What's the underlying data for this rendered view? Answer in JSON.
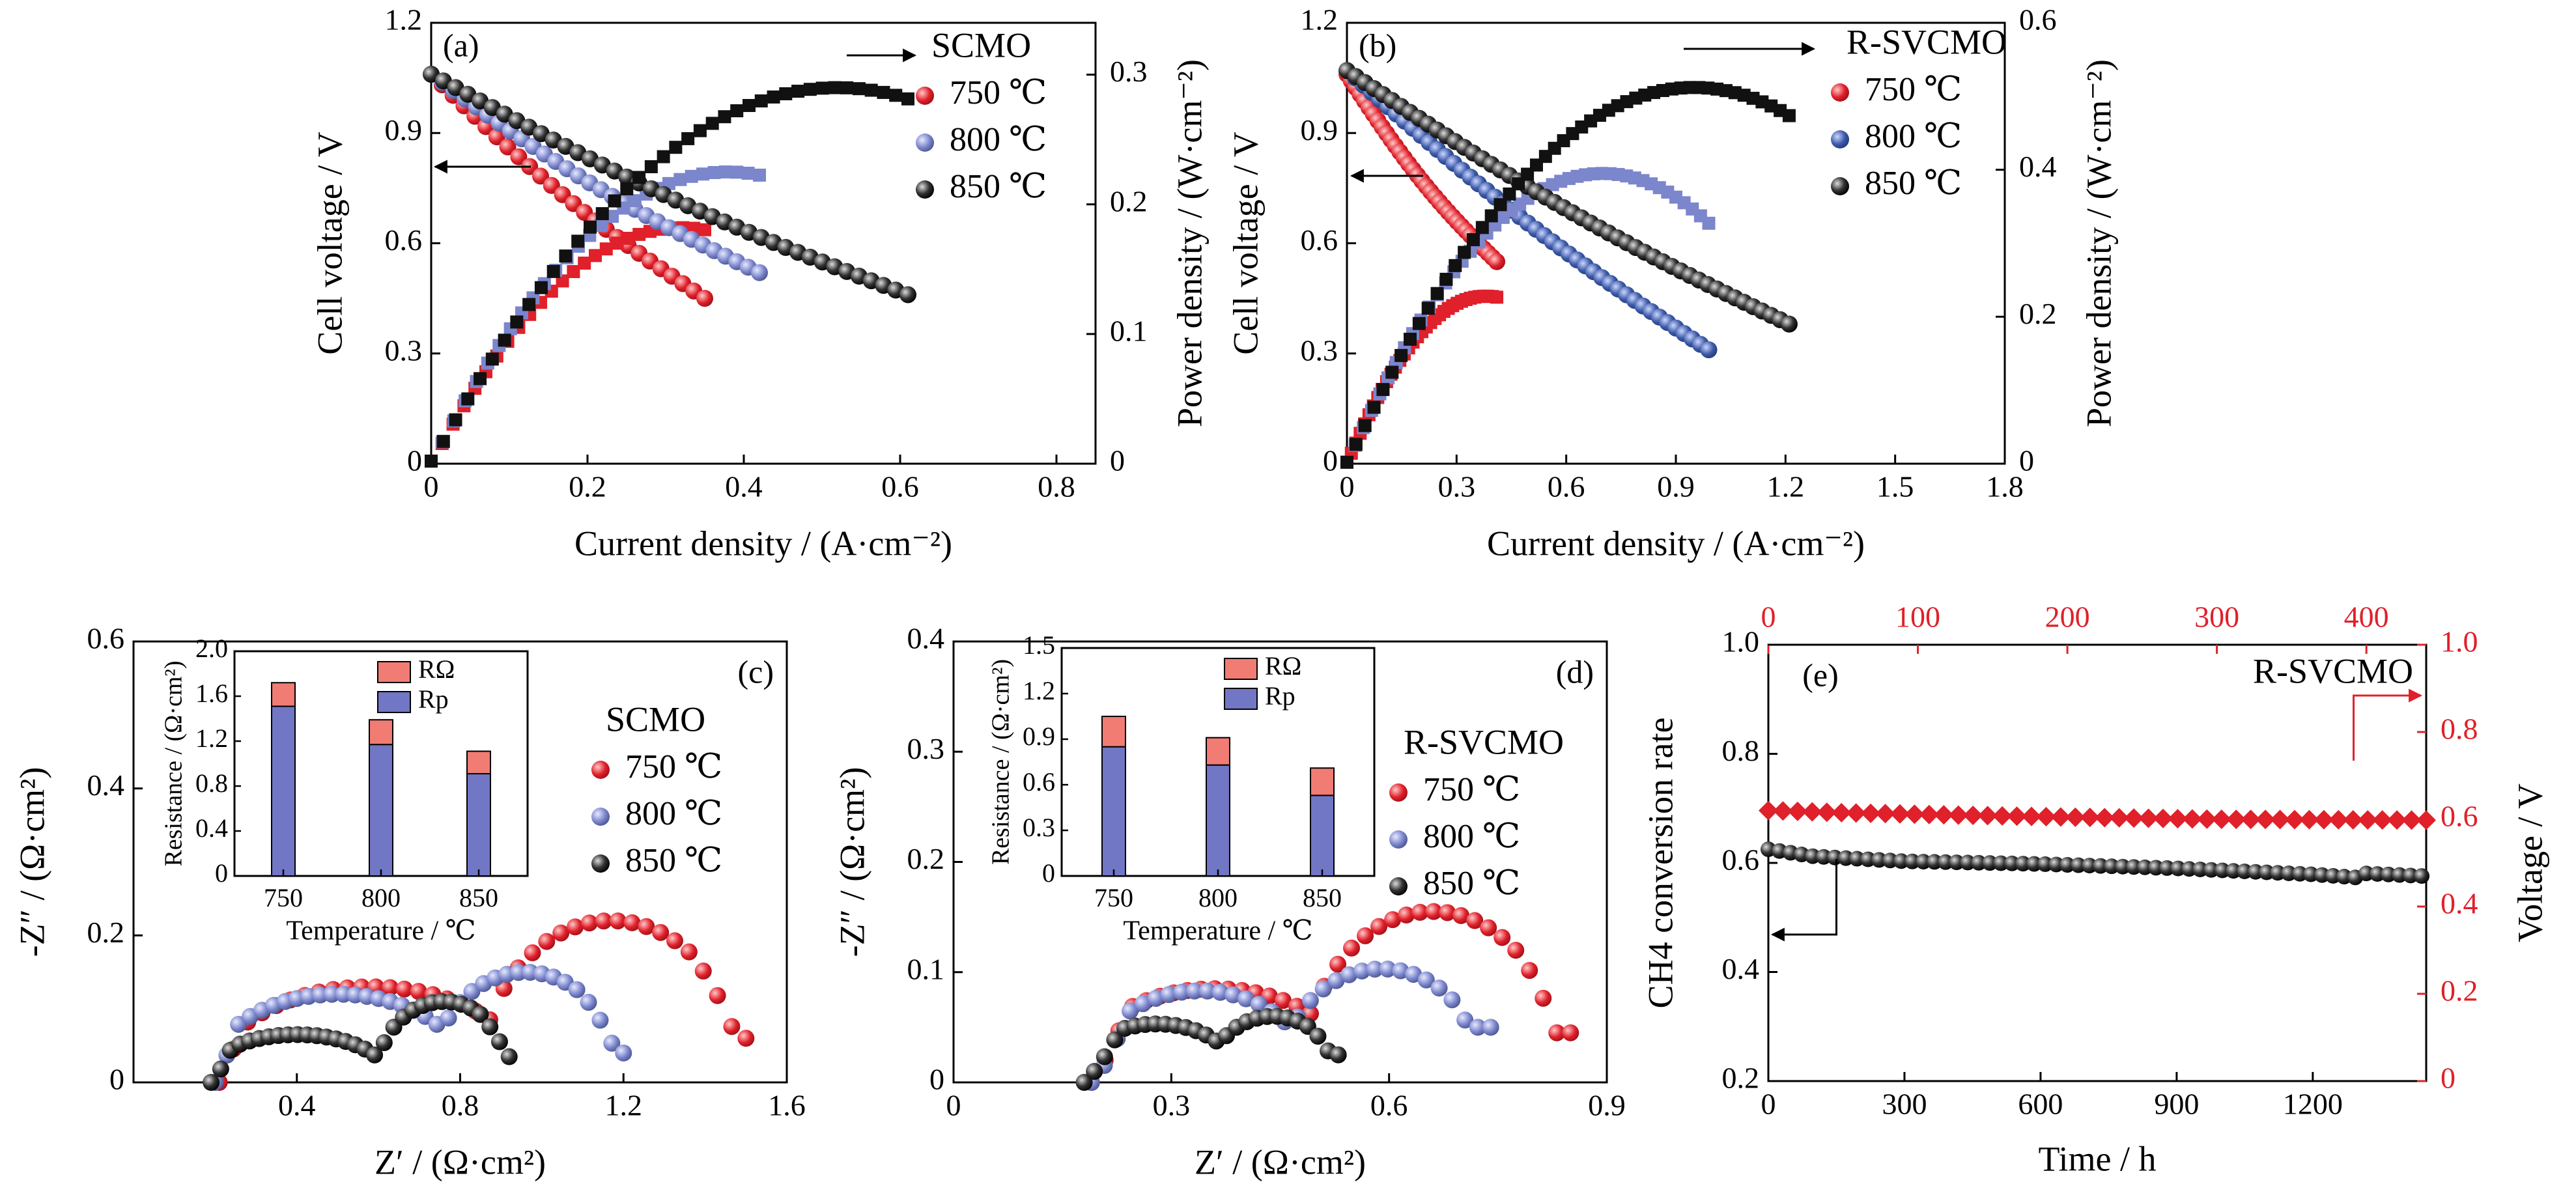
{
  "chart_data": [
    {
      "panel": "(a)",
      "type": "line",
      "legend_title": "SCMO",
      "xlabel": "Current density / (A·cm⁻²)",
      "ylabel": "Cell voltage / V",
      "y2label": "Power density / (W·cm⁻²)",
      "xlim": [
        0,
        0.85
      ],
      "ylim": [
        0,
        1.2
      ],
      "y2lim": [
        0,
        0.34
      ],
      "xticks": [
        "0",
        "0.2",
        "0.4",
        "0.6",
        "0.8"
      ],
      "yticks": [
        "0",
        "0.3",
        "0.6",
        "0.9",
        "1.2"
      ],
      "y2ticks": [
        "0",
        "0.1",
        "0.2",
        "0.3"
      ],
      "series": [
        {
          "name": "750 ℃",
          "color": "#e0202a",
          "voltage": {
            "x0": 0,
            "x1": 0.35,
            "y0": 1.06,
            "y1": 0.45,
            "n": 26
          },
          "power": {
            "xmax": 0.35,
            "peak_x": 0.32,
            "peak": 0.182,
            "n": 26
          }
        },
        {
          "name": "800 ℃",
          "color": "#7b86cc",
          "voltage": {
            "x0": 0,
            "x1": 0.42,
            "y0": 1.06,
            "y1": 0.52,
            "n": 30
          },
          "power": {
            "xmax": 0.42,
            "peak_x": 0.38,
            "peak": 0.225,
            "n": 30
          }
        },
        {
          "name": "850 ℃",
          "color": "#111111",
          "voltage": {
            "x0": 0,
            "x1": 0.61,
            "y0": 1.06,
            "y1": 0.46,
            "n": 40
          },
          "power": {
            "xmax": 0.61,
            "peak_x": 0.52,
            "peak": 0.29,
            "n": 40
          }
        }
      ]
    },
    {
      "panel": "(b)",
      "type": "line",
      "legend_title": "R-SVCMO",
      "xlabel": "Current density / (A·cm⁻²)",
      "ylabel": "Cell voltage / V",
      "y2label": "Power density / (W·cm⁻²)",
      "xlim": [
        0,
        1.8
      ],
      "ylim": [
        0,
        1.2
      ],
      "y2lim": [
        0,
        0.6
      ],
      "xticks": [
        "0",
        "0.3",
        "0.6",
        "0.9",
        "1.2",
        "1.5",
        "1.8"
      ],
      "yticks": [
        "0",
        "0.3",
        "0.6",
        "0.9",
        "1.2"
      ],
      "y2ticks": [
        "0",
        "0.2",
        "0.4",
        "0.6"
      ],
      "series": [
        {
          "name": "750 ℃",
          "color": "#e0202a",
          "voltage": {
            "x0": 0,
            "x1": 0.41,
            "y0": 1.06,
            "y1": 0.55,
            "n": 35
          },
          "power": {
            "xmax": 0.41,
            "peak_x": 0.38,
            "peak": 0.228,
            "n": 35
          }
        },
        {
          "name": "800 ℃",
          "color": "#3d5aa8",
          "voltage": {
            "x0": 0,
            "x1": 0.99,
            "y0": 1.07,
            "y1": 0.31,
            "n": 45
          },
          "power": {
            "xmax": 0.99,
            "peak_x": 0.7,
            "peak": 0.395,
            "n": 45
          }
        },
        {
          "name": "850 ℃",
          "color": "#111111",
          "voltage": {
            "x0": 0,
            "x1": 1.21,
            "y0": 1.07,
            "y1": 0.38,
            "n": 50
          },
          "power": {
            "xmax": 1.21,
            "peak_x": 0.95,
            "peak": 0.512,
            "n": 50
          }
        }
      ]
    },
    {
      "panel": "(c)",
      "type": "scatter",
      "legend_title": "SCMO",
      "xlabel": "Z′ / (Ω·cm²)",
      "ylabel": "-Z″ / (Ω·cm²)",
      "xlim": [
        0,
        1.6
      ],
      "ylim": [
        0,
        0.6
      ],
      "xticks": [
        "0.4",
        "0.8",
        "1.2",
        "1.6"
      ],
      "yticks": [
        "0",
        "0.2",
        "0.4",
        "0.6"
      ],
      "series": [
        {
          "name": "750 ℃",
          "color": "#e0202a",
          "z_start": 0.21,
          "z_end": 1.5,
          "end_y": 0.06,
          "arcs": [
            {
              "c": 0.58,
              "w": 0.3,
              "h": 0.13
            },
            {
              "c": 1.17,
              "w": 0.25,
              "h": 0.22
            }
          ],
          "n": 38
        },
        {
          "name": "800 ℃",
          "color": "#7b86cc",
          "z_start": 0.2,
          "z_end": 1.2,
          "end_y": 0.04,
          "arcs": [
            {
              "c": 0.5,
              "w": 0.25,
              "h": 0.12
            },
            {
              "c": 0.96,
              "w": 0.18,
              "h": 0.15
            }
          ],
          "n": 36
        },
        {
          "name": "850 ℃",
          "color": "#111111",
          "z_start": 0.19,
          "z_end": 0.92,
          "end_y": 0.035,
          "arcs": [
            {
              "c": 0.4,
              "w": 0.18,
              "h": 0.065
            },
            {
              "c": 0.76,
              "w": 0.13,
              "h": 0.11
            }
          ],
          "n": 32
        }
      ],
      "inset": {
        "ylabel": "Resistance / (Ω·cm²)",
        "xlabel": "Temperature / ℃",
        "ylim": [
          0,
          2.0
        ],
        "yticks": [
          "0",
          "0.4",
          "0.8",
          "1.2",
          "1.6",
          "2.0"
        ],
        "categories": [
          "750",
          "800",
          "850"
        ],
        "legend": [
          "RΩ",
          "Rp"
        ],
        "r_omega": [
          0.21,
          0.22,
          0.2
        ],
        "r_p": [
          1.51,
          1.17,
          0.91
        ]
      }
    },
    {
      "panel": "(d)",
      "type": "scatter",
      "legend_title": "R-SVCMO",
      "xlabel": "Z′ / (Ω·cm²)",
      "ylabel": "-Z″ / (Ω·cm²)",
      "xlim": [
        0,
        0.9
      ],
      "ylim": [
        0,
        0.4
      ],
      "xticks": [
        "0",
        "0.3",
        "0.6",
        "0.9"
      ],
      "yticks": [
        "0",
        "0.1",
        "0.2",
        "0.3",
        "0.4"
      ],
      "series": [
        {
          "name": "750 ℃",
          "color": "#e0202a",
          "z_start": 0.19,
          "z_end": 0.85,
          "end_y": 0.045,
          "arcs": [
            {
              "c": 0.36,
              "w": 0.15,
              "h": 0.085
            },
            {
              "c": 0.66,
              "w": 0.14,
              "h": 0.155
            }
          ],
          "n": 36
        },
        {
          "name": "800 ℃",
          "color": "#7b86cc",
          "z_start": 0.19,
          "z_end": 0.74,
          "end_y": 0.05,
          "arcs": [
            {
              "c": 0.34,
              "w": 0.12,
              "h": 0.083
            },
            {
              "c": 0.59,
              "w": 0.11,
              "h": 0.103
            }
          ],
          "n": 32
        },
        {
          "name": "850 ℃",
          "color": "#111111",
          "z_start": 0.18,
          "z_end": 0.53,
          "end_y": 0.025,
          "arcs": [
            {
              "c": 0.28,
              "w": 0.09,
              "h": 0.053
            },
            {
              "c": 0.44,
              "w": 0.07,
              "h": 0.06
            }
          ],
          "n": 26
        }
      ],
      "inset": {
        "ylabel": "Resistance / (Ω·cm²)",
        "xlabel": "Temperature / ℃",
        "ylim": [
          0,
          1.5
        ],
        "yticks": [
          "0",
          "0.3",
          "0.6",
          "0.9",
          "1.2",
          "1.5"
        ],
        "categories": [
          "750",
          "800",
          "850"
        ],
        "legend": [
          "RΩ",
          "Rp"
        ],
        "r_omega": [
          0.2,
          0.18,
          0.18
        ],
        "r_p": [
          0.85,
          0.73,
          0.53
        ]
      }
    },
    {
      "panel": "(e)",
      "type": "scatter",
      "legend_title": "R-SVCMO",
      "xlabel": "Time / h",
      "ylabel": "CH4 conversion rate",
      "y2label": "Voltage / V",
      "top_xlim": [
        0,
        440
      ],
      "top_xticks": [
        "0",
        "100",
        "200",
        "300",
        "400"
      ],
      "xlim": [
        0,
        1450
      ],
      "ylim": [
        0.2,
        1.0
      ],
      "y2lim": [
        0,
        1.0
      ],
      "xticks": [
        "0",
        "300",
        "600",
        "900",
        "1200"
      ],
      "yticks": [
        "0.2",
        "0.4",
        "0.6",
        "0.8",
        "1.0"
      ],
      "y2ticks": [
        "0",
        "0.2",
        "0.4",
        "0.6",
        "0.8",
        "1.0"
      ],
      "series": [
        {
          "name": "CH4 conversion rate",
          "color": "#111111",
          "points": [
            [
              0,
              0.625
            ],
            [
              100,
              0.612
            ],
            [
              300,
              0.603
            ],
            [
              600,
              0.598
            ],
            [
              900,
              0.59
            ],
            [
              1200,
              0.579
            ],
            [
              1300,
              0.573
            ],
            [
              1310,
              0.581
            ],
            [
              1440,
              0.576
            ]
          ],
          "n": 60
        },
        {
          "name": "Voltage",
          "color": "#e0202a",
          "points": [
            [
              0,
              0.62
            ],
            [
              50,
              0.615
            ],
            [
              120,
              0.61
            ],
            [
              200,
              0.605
            ],
            [
              300,
              0.6
            ],
            [
              440,
              0.598
            ]
          ],
          "n": 46
        }
      ]
    }
  ]
}
